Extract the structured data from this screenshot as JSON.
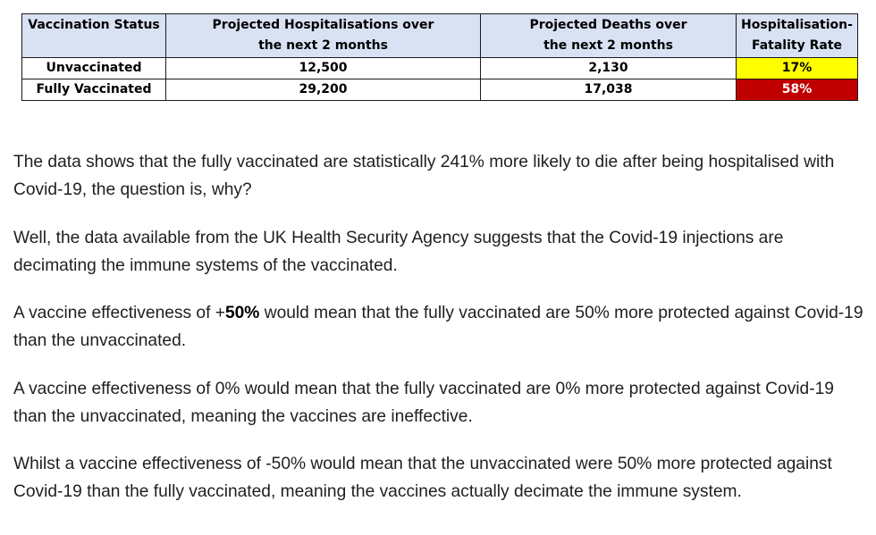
{
  "table": {
    "headers": {
      "status": "Vaccination Status",
      "hosp_line1": "Projected Hospitalisations over",
      "hosp_line2": "the next 2 months",
      "deaths_line1": "Projected Deaths over",
      "deaths_line2": "the next 2 months",
      "rate_line1": "Hospitalisation-",
      "rate_line2": "Fatality Rate"
    },
    "rows": [
      {
        "status": "Unvaccinated",
        "hospitalisations": "12,500",
        "deaths": "2,130",
        "rate": "17%",
        "rate_color": "#ffff00"
      },
      {
        "status": "Fully Vaccinated",
        "hospitalisations": "29,200",
        "deaths": "17,038",
        "rate": "58%",
        "rate_color": "#c00000"
      }
    ]
  },
  "paragraphs": {
    "p1": "The data shows that the fully vaccinated are statistically 241% more likely to die after being hospitalised with Covid-19, the question is, why?",
    "p2": "Well, the data available from the UK Health Security Agency suggests that the Covid-19 injections are decimating the immune systems of the vaccinated.",
    "p3_pre": "A vaccine effectiveness of +",
    "p3_bold": "50%",
    "p3_post": " would mean that the fully vaccinated are 50% more protected against Covid-19 than the unvaccinated.",
    "p4": "A vaccine effectiveness of 0% would mean that the fully vaccinated are 0% more protected against Covid-19 than the unvaccinated, meaning the vaccines are ineffective.",
    "p5": "Whilst a vaccine effectiveness of -50% would mean that the unvaccinated were 50% more protected against Covid-19 than the fully vaccinated, meaning the vaccines actually decimate the immune system."
  }
}
